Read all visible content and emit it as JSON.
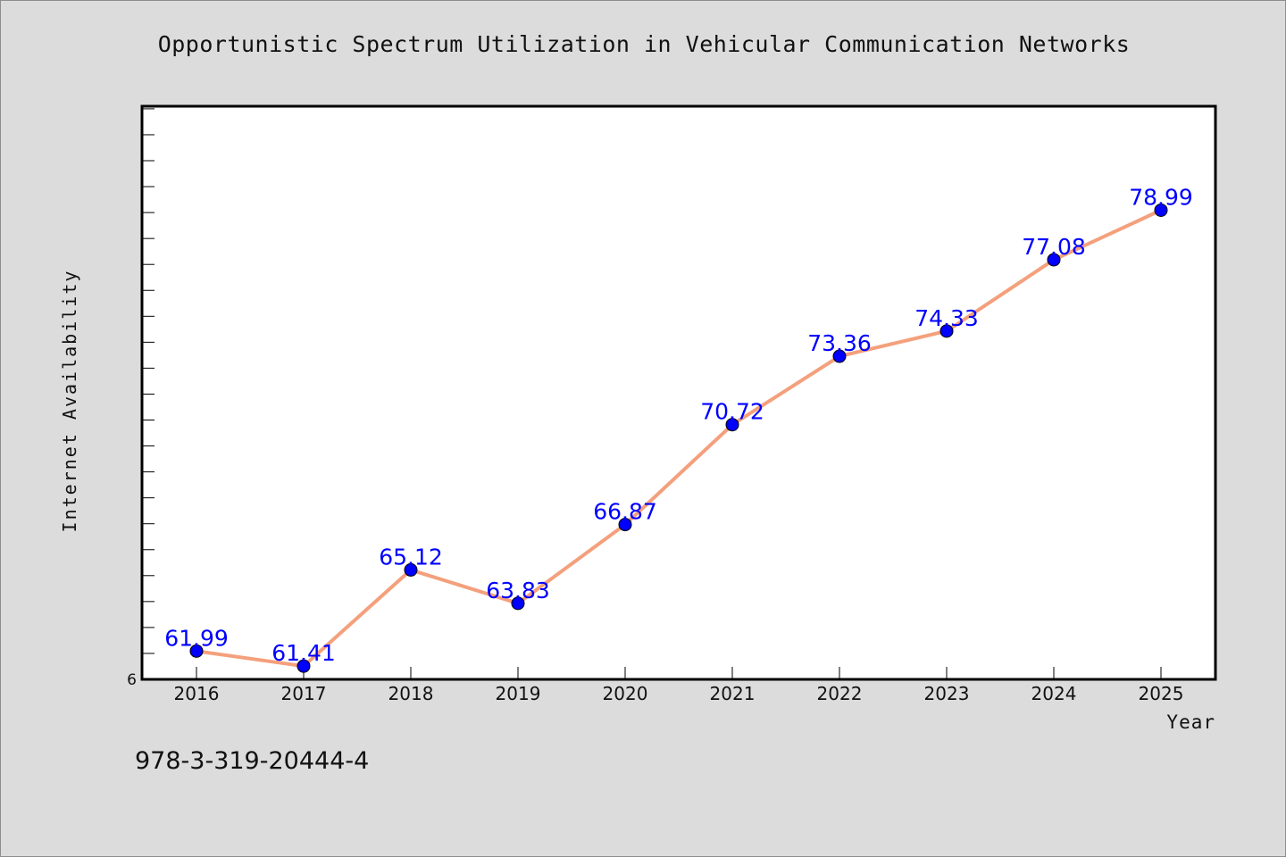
{
  "colors": {
    "background": "#dcdcdc",
    "plot_area": "#ffffff",
    "line": "#f4a07c",
    "marker": "#0000ff",
    "data_label": "#0000ff",
    "axis": "#000000"
  },
  "chart_data": {
    "type": "line",
    "title": "Opportunistic Spectrum Utilization in Vehicular Communication Networks",
    "xlabel": "Year",
    "ylabel": "Internet Availability",
    "categories": [
      "2016",
      "2017",
      "2018",
      "2019",
      "2020",
      "2021",
      "2022",
      "2023",
      "2024",
      "2025"
    ],
    "series": [
      {
        "values": [
          61.99,
          61.41,
          65.12,
          63.83,
          66.87,
          70.72,
          73.36,
          74.33,
          77.08,
          78.99
        ],
        "labels": [
          "61.99",
          "61.41",
          "65.12",
          "63.83",
          "66.87",
          "70.72",
          "73.36",
          "74.33",
          "77.08",
          "78.99"
        ]
      }
    ],
    "ylim": [
      60.9,
      83
    ],
    "y_ticks_labeled": [
      {
        "value": 60.9,
        "label": "6"
      }
    ],
    "y_minor_tick_step": 1,
    "grid": false,
    "legend": "none"
  },
  "annotation": {
    "text": "978-3-319-20444-4"
  }
}
